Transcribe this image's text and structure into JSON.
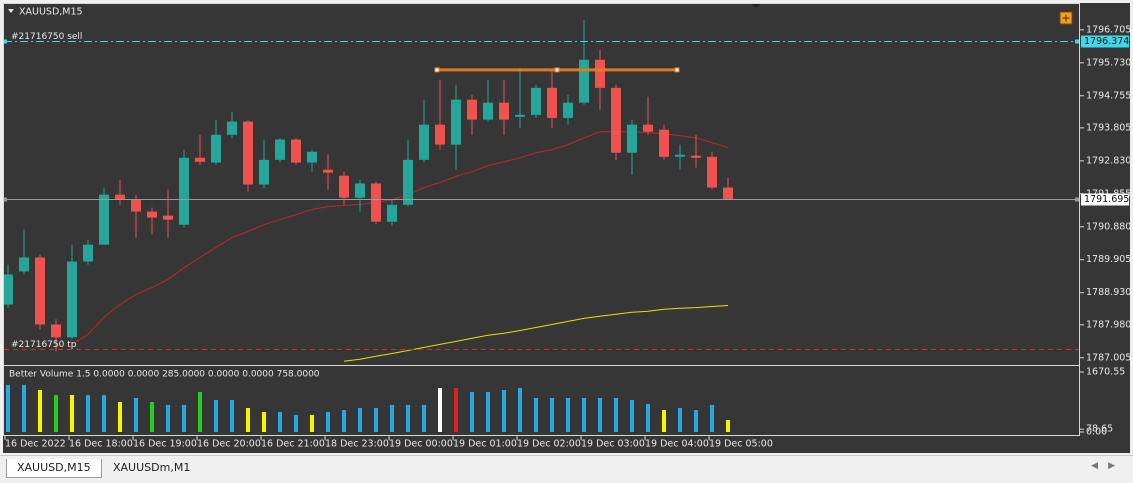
{
  "window_title": "XAUUSD,M15",
  "tabs": [
    "XAUUSD,M15",
    "XAUUSDm,M1"
  ],
  "chart_data": [
    {
      "type": "candlestick",
      "categories": [
        "16 Dec 2022",
        null,
        null,
        null,
        "16 Dec 18:00",
        null,
        null,
        null,
        "16 Dec 19:00",
        null,
        null,
        null,
        "16 Dec 20:00",
        null,
        null,
        null,
        "16 Dec 21:00",
        null,
        null,
        null,
        "18 Dec 23:00",
        null,
        null,
        null,
        "19 Dec 00:00",
        null,
        null,
        null,
        "19 Dec 01:00",
        null,
        null,
        null,
        "19 Dec 02:00",
        null,
        null,
        null,
        "19 Dec 03:00",
        null,
        null,
        null,
        "19 Dec 04:00",
        null,
        null,
        null,
        "19 Dec 05:00",
        null
      ],
      "open": [
        1788.58,
        1789.56,
        1789.97,
        1787.99,
        1787.61,
        1789.85,
        1790.35,
        1791.83,
        1791.68,
        1791.33,
        1791.21,
        1790.94,
        1792.92,
        1792.78,
        1793.6,
        1793.99,
        1792.13,
        1792.86,
        1793.46,
        1792.78,
        1792.57,
        1792.39,
        1791.74,
        1792.16,
        1791.03,
        1791.53,
        1792.86,
        1793.9,
        1793.31,
        1794.64,
        1794.05,
        1794.55,
        1794.13,
        1794.19,
        1794.99,
        1794.1,
        1794.55,
        1795.82,
        1794.99,
        1793.07,
        1793.9,
        1793.75,
        1792.95,
        1792.98,
        1792.95,
        1792.04
      ],
      "high": [
        1789.76,
        1790.8,
        1790.06,
        1788.14,
        1790.35,
        1790.5,
        1792.04,
        1792.27,
        1791.83,
        1791.45,
        1791.98,
        1793.16,
        1793.6,
        1794.05,
        1794.28,
        1794.05,
        1793.46,
        1793.51,
        1793.51,
        1793.16,
        1793.01,
        1792.51,
        1792.27,
        1792.21,
        1791.68,
        1793.46,
        1794.64,
        1795.23,
        1795.08,
        1794.78,
        1795.23,
        1795.23,
        1795.58,
        1795.08,
        1795.52,
        1794.78,
        1797.0,
        1796.11,
        1795.08,
        1794.05,
        1794.73,
        1793.9,
        1793.31,
        1793.6,
        1793.1,
        1792.33
      ],
      "low": [
        1788.49,
        1789.47,
        1787.84,
        1787.19,
        1787.55,
        1789.76,
        1790.35,
        1791.53,
        1790.56,
        1790.65,
        1790.56,
        1790.86,
        1792.72,
        1792.72,
        1793.51,
        1791.92,
        1792.04,
        1792.8,
        1792.72,
        1792.51,
        1791.98,
        1791.53,
        1791.33,
        1790.97,
        1790.91,
        1791.48,
        1792.8,
        1793.16,
        1792.57,
        1793.6,
        1793.99,
        1793.6,
        1793.81,
        1794.1,
        1793.81,
        1793.9,
        1794.49,
        1794.34,
        1792.86,
        1792.42,
        1793.6,
        1792.86,
        1792.57,
        1792.63,
        1791.98,
        1791.68
      ],
      "close": [
        1789.47,
        1789.97,
        1787.99,
        1787.61,
        1789.85,
        1790.35,
        1791.83,
        1791.68,
        1791.33,
        1791.15,
        1791.09,
        1792.92,
        1792.8,
        1793.6,
        1793.99,
        1792.13,
        1792.86,
        1793.46,
        1792.78,
        1793.1,
        1792.48,
        1791.74,
        1792.16,
        1791.03,
        1791.53,
        1792.86,
        1793.9,
        1793.31,
        1794.64,
        1794.05,
        1794.55,
        1794.05,
        1794.19,
        1794.99,
        1794.1,
        1794.55,
        1795.82,
        1794.99,
        1793.07,
        1793.9,
        1793.69,
        1792.95,
        1793.01,
        1792.92,
        1792.04,
        1791.695
      ],
      "up_color": "#26a69a",
      "down_color": "#ef5350",
      "lines": [
        {
          "color": "#c0272d",
          "values": [
            null,
            null,
            null,
            null,
            1787.4,
            1787.7,
            1788.2,
            1788.58,
            1788.88,
            1789.08,
            1789.32,
            1789.67,
            1789.97,
            1790.27,
            1790.56,
            1790.74,
            1790.94,
            1791.09,
            1791.24,
            1791.39,
            1791.48,
            1791.51,
            1791.54,
            1791.6,
            1791.68,
            1791.83,
            1792.04,
            1792.19,
            1792.37,
            1792.51,
            1792.69,
            1792.8,
            1792.92,
            1793.07,
            1793.16,
            1793.31,
            1793.51,
            1793.69,
            1793.69,
            1793.69,
            1793.66,
            1793.63,
            1793.57,
            1793.51,
            1793.37,
            1793.22
          ]
        },
        {
          "color": "#e8e000",
          "values": [
            null,
            null,
            null,
            null,
            null,
            null,
            null,
            null,
            null,
            null,
            null,
            null,
            null,
            null,
            null,
            null,
            null,
            null,
            null,
            null,
            null,
            1786.9,
            1786.96,
            1787.05,
            1787.13,
            1787.22,
            1787.31,
            1787.4,
            1787.49,
            1787.58,
            1787.67,
            1787.73,
            1787.81,
            1787.9,
            1787.99,
            1788.08,
            1788.17,
            1788.23,
            1788.29,
            1788.35,
            1788.38,
            1788.44,
            1788.47,
            1788.49,
            1788.52,
            1788.55
          ]
        }
      ],
      "levels": [
        {
          "label": "#21716750 sell",
          "value": 1796.374,
          "color": "#3fd8e8",
          "style": "dash-dot",
          "axis_label": true
        },
        {
          "label": "#21716750 tp",
          "value": 1787.25,
          "color": "#d03030",
          "style": "dashed",
          "axis_label": false
        },
        {
          "value": 1791.695,
          "color": "#9a9a9a",
          "style": "solid",
          "axis_label": true
        }
      ],
      "trendline": {
        "value": 1795.52,
        "color": "#e07a20"
      },
      "ylim": [
        1786.85,
        1797.44
      ],
      "yticks": [
        1796.705,
        {
          "value": 1795.73,
          "label": "1795.730"
        },
        1794.755,
        1793.805,
        {
          "value": 1792.83,
          "label": "1792.830"
        },
        1791.855,
        {
          "value": 1790.88,
          "label": "1790.880"
        },
        1789.905,
        {
          "value": 1788.93,
          "label": "1788.930"
        },
        {
          "value": 1787.98,
          "label": "1787.980"
        },
        1787.005
      ]
    },
    {
      "type": "bar",
      "title": "Better Volume 1.5 0.0000 0.0000 285.0000 0.0000 0.0000 758.0000",
      "values": [
        1309,
        1309,
        1169,
        1030,
        1030,
        1030,
        1030,
        835,
        947,
        835,
        752,
        752,
        1114,
        891,
        891,
        668,
        557,
        557,
        473,
        473,
        557,
        612,
        668,
        668,
        752,
        752,
        752,
        1225,
        1225,
        1114,
        1114,
        1169,
        1225,
        947,
        947,
        947,
        947,
        947,
        947,
        891,
        780,
        612,
        668,
        612,
        752,
        334
      ],
      "colors": [
        "#29a8e6",
        "#29a8e6",
        "#f5f500",
        "#22d022",
        "#f5f500",
        "#29a8e6",
        "#29a8e6",
        "#f5f500",
        "#29a8e6",
        "#22d022",
        "#29a8e6",
        "#29a8e6",
        "#22d022",
        "#29a8e6",
        "#29a8e6",
        "#f5f500",
        "#f5f500",
        "#29a8e6",
        "#29a8e6",
        "#f5f500",
        "#29a8e6",
        "#29a8e6",
        "#29a8e6",
        "#29a8e6",
        "#29a8e6",
        "#29a8e6",
        "#29a8e6",
        "#ffffff",
        "#e02020",
        "#29a8e6",
        "#29a8e6",
        "#29a8e6",
        "#29a8e6",
        "#29a8e6",
        "#29a8e6",
        "#29a8e6",
        "#29a8e6",
        "#29a8e6",
        "#29a8e6",
        "#29a8e6",
        "#29a8e6",
        "#f5f500",
        "#29a8e6",
        "#29a8e6",
        "#29a8e6",
        "#f5f500"
      ],
      "ylim": [
        0,
        1670.55
      ],
      "yticks": [
        1670.55,
        78.65,
        {
          "value": 0,
          "label": "0.00"
        }
      ]
    }
  ]
}
